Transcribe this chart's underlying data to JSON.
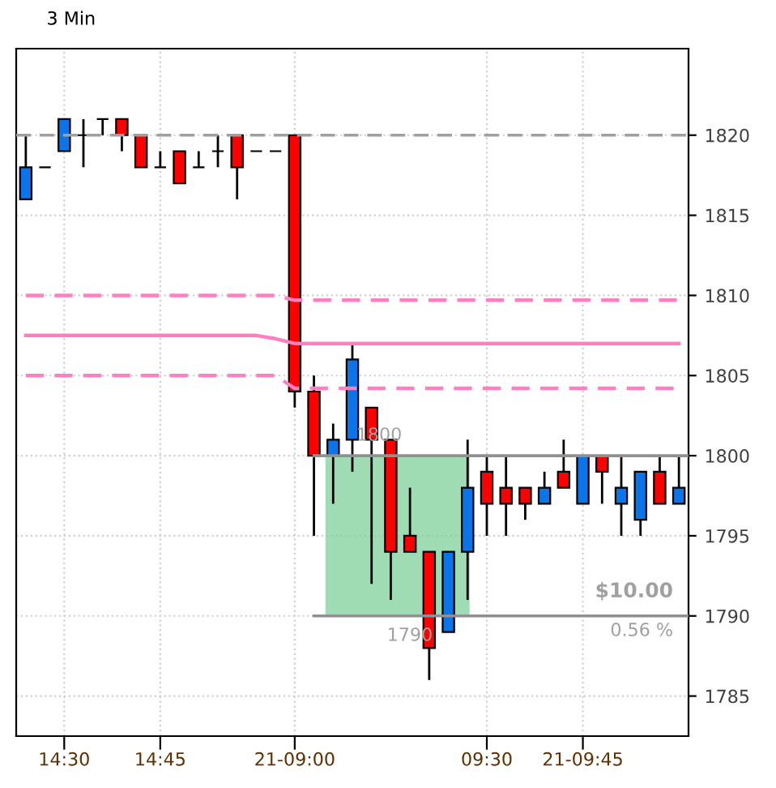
{
  "chart_data": {
    "type": "candlestick",
    "title": "3 Min",
    "categories": [
      null,
      null,
      "14:30",
      null,
      null,
      null,
      null,
      "14:45",
      null,
      null,
      null,
      null,
      null,
      null,
      "21-09:00",
      null,
      null,
      null,
      null,
      null,
      null,
      null,
      null,
      null,
      "09:30",
      null,
      null,
      null,
      null,
      "21-09:45",
      null,
      null,
      null,
      null,
      null
    ],
    "ohlc": [
      [
        1816,
        1820,
        1816,
        1818
      ],
      [
        1818,
        1818,
        1818,
        1818
      ],
      [
        1819,
        1821,
        1819,
        1821
      ],
      [
        1820,
        1821,
        1818,
        1820
      ],
      [
        1821,
        1821,
        1820,
        1821
      ],
      [
        1821,
        1821,
        1819,
        1820
      ],
      [
        1820,
        1820,
        1818,
        1818
      ],
      [
        1818,
        1819,
        1818,
        1818
      ],
      [
        1819,
        1819,
        1817,
        1817
      ],
      [
        1818,
        1819,
        1818,
        1818
      ],
      [
        1819,
        1820,
        1818,
        1819
      ],
      [
        1820,
        1820,
        1816,
        1818
      ],
      [
        1819,
        1819,
        1819,
        1819
      ],
      [
        1819,
        1819,
        1819,
        1819
      ],
      [
        1820,
        1820,
        1803,
        1804
      ],
      [
        1804,
        1805,
        1795,
        1800
      ],
      [
        1800,
        1802,
        1797,
        1801
      ],
      [
        1801,
        1807,
        1799,
        1806
      ],
      [
        1803,
        1803,
        1792,
        1801
      ],
      [
        1801,
        1801,
        1791,
        1794
      ],
      [
        1795,
        1798,
        1794,
        1794
      ],
      [
        1794,
        1794,
        1786,
        1788
      ],
      [
        1789,
        1794,
        1789,
        1794
      ],
      [
        1794,
        1801,
        1791,
        1798
      ],
      [
        1799,
        1800,
        1795,
        1797
      ],
      [
        1798,
        1800,
        1795,
        1797
      ],
      [
        1798,
        1798,
        1796,
        1797
      ],
      [
        1797,
        1799,
        1797,
        1798
      ],
      [
        1799,
        1801,
        1798,
        1798
      ],
      [
        1797,
        1800,
        1797,
        1800
      ],
      [
        1800,
        1800,
        1797,
        1799
      ],
      [
        1797,
        1800,
        1795,
        1798
      ],
      [
        1796,
        1799,
        1795,
        1799
      ],
      [
        1799,
        1800,
        1797,
        1797
      ],
      [
        1797,
        1800,
        1797,
        1798
      ]
    ],
    "colors": [
      "#0a74e8",
      "#000000",
      "#0a74e8",
      "#000000",
      "#000000",
      "#ff0000",
      "#ff0000",
      "#000000",
      "#ff0000",
      "#000000",
      "#000000",
      "#ff0000",
      "#000000",
      "#000000",
      "#ff0000",
      "#ff0000",
      "#0a74e8",
      "#0a74e8",
      "#ff0000",
      "#ff0000",
      "#ff0000",
      "#ff0000",
      "#0a74e8",
      "#0a74e8",
      "#ff0000",
      "#ff0000",
      "#ff0000",
      "#0a74e8",
      "#ff0000",
      "#0a74e8",
      "#ff0000",
      "#0a74e8",
      "#0a74e8",
      "#ff0000",
      "#0a74e8"
    ],
    "series": [
      {
        "type": "line",
        "color": "#ff80c0",
        "line_style": "dashed",
        "values": [
          1810,
          1810,
          1810,
          1810,
          1810,
          1810,
          1810,
          1810,
          1810,
          1810,
          1810,
          1810,
          1810,
          1810,
          1809.7,
          1809.7,
          1809.7,
          1809.7,
          1809.7,
          1809.7,
          1809.7,
          1809.7,
          1809.7,
          1809.7,
          1809.7,
          1809.7,
          1809.7,
          1809.7,
          1809.7,
          1809.7,
          1809.7,
          1809.7,
          1809.7,
          1809.7,
          1809.7
        ]
      },
      {
        "type": "line",
        "color": "#ff80c0",
        "line_style": "solid",
        "values": [
          1807.5,
          1807.5,
          1807.5,
          1807.5,
          1807.5,
          1807.5,
          1807.5,
          1807.5,
          1807.5,
          1807.5,
          1807.5,
          1807.5,
          1807.5,
          1807.3,
          1807,
          1807,
          1807,
          1807,
          1807,
          1807,
          1807,
          1807,
          1807,
          1807,
          1807,
          1807,
          1807,
          1807,
          1807,
          1807,
          1807,
          1807,
          1807,
          1807,
          1807
        ]
      },
      {
        "type": "line",
        "color": "#ff80c0",
        "line_style": "dashed",
        "values": [
          1805,
          1805,
          1805,
          1805,
          1805,
          1805,
          1805,
          1805,
          1805,
          1805,
          1805,
          1805,
          1805,
          1805,
          1804.2,
          1804.2,
          1804.2,
          1804.2,
          1804.2,
          1804.2,
          1804.2,
          1804.2,
          1804.2,
          1804.2,
          1804.2,
          1804.2,
          1804.2,
          1804.2,
          1804.2,
          1804.2,
          1804.2,
          1804.2,
          1804.2,
          1804.2,
          1804.2
        ]
      }
    ],
    "ref_lines": [
      {
        "axis": "y",
        "value": 1820,
        "color": "#a0a0a0",
        "line_style": "dashed"
      },
      {
        "axis": "y",
        "value": 1800,
        "color": "#909090",
        "line_style": "solid"
      },
      {
        "axis": "y",
        "value": 1790,
        "color": "#909090",
        "line_style": "solid"
      }
    ],
    "annotations": [
      "1800",
      "1790",
      "$10.00",
      "0.56 %"
    ],
    "ylim": [
      1782.5,
      1825.4
    ],
    "yticks": [
      1785,
      1790,
      1795,
      1800,
      1805,
      1810,
      1815,
      1820
    ],
    "grid": true
  }
}
